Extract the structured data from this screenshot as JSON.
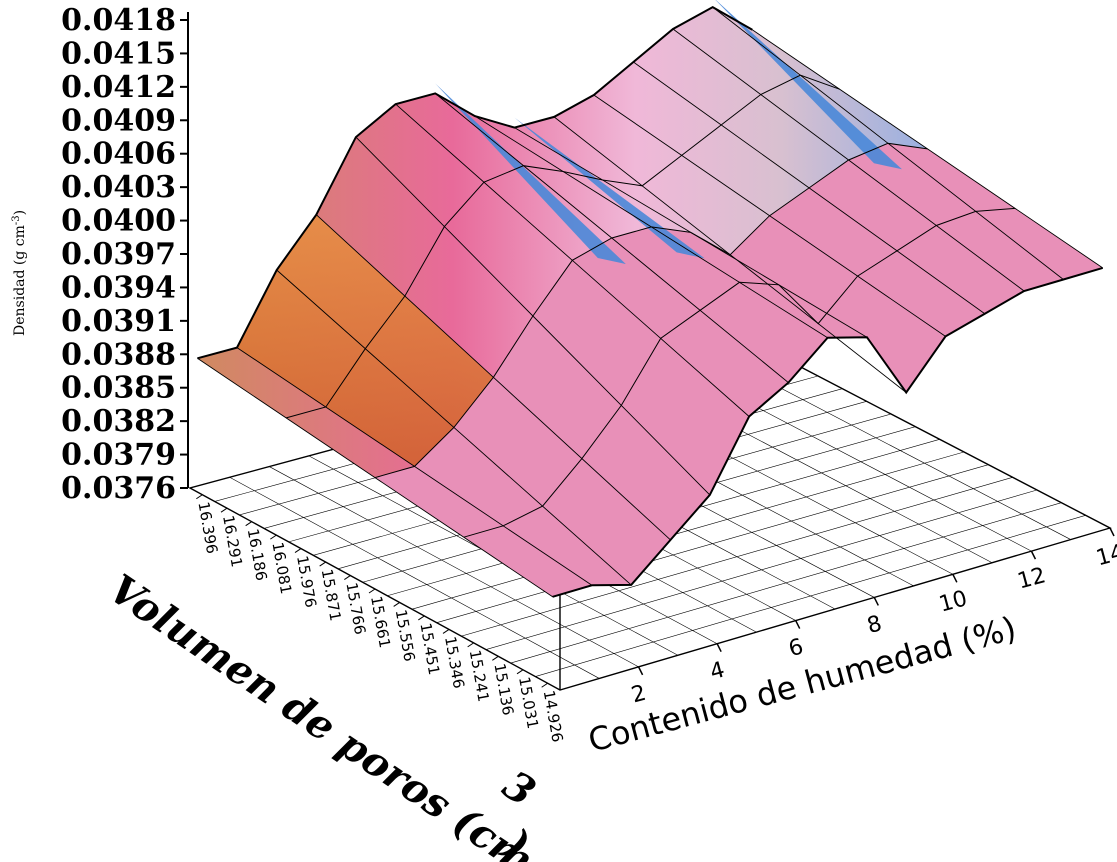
{
  "chart_data": {
    "type": "surface",
    "z_axis": {
      "label": "Densidad (g cm-3)",
      "label_base": "Densidad (g cm",
      "label_sup": "-3",
      "label_close": ")",
      "ticks": [
        "0.0418",
        "0.0415",
        "0.0412",
        "0.0409",
        "0.0406",
        "0.0403",
        "0.0400",
        "0.0397",
        "0.0394",
        "0.0391",
        "0.0388",
        "0.0385",
        "0.0382",
        "0.0379",
        "0.0376"
      ],
      "range": [
        0.0376,
        0.0418
      ]
    },
    "x_axis": {
      "label": "Contenido de humedad (%)",
      "ticks": [
        "2",
        "4",
        "6",
        "8",
        "10",
        "12",
        "14"
      ],
      "range": [
        0,
        14
      ]
    },
    "y_axis": {
      "label_main": "Volumen de poros (cm",
      "label_sup": "3",
      "label_close": ")",
      "ticks": [
        "16.396",
        "16.291",
        "16.186",
        "16.081",
        "15.976",
        "15.871",
        "15.766",
        "15.661",
        "15.556",
        "15.451",
        "15.346",
        "15.241",
        "15.136",
        "15.031",
        "14.926"
      ]
    },
    "surface_profile": {
      "x": [
        0,
        1,
        2,
        3,
        4,
        5,
        6,
        7,
        8,
        9,
        10,
        11,
        12,
        13,
        14
      ],
      "back_density": [
        0.0388,
        0.0388,
        0.0394,
        0.0398,
        0.0404,
        0.0406,
        0.0406,
        0.0403,
        0.0401,
        0.0401,
        0.0402,
        0.0404,
        0.0406,
        0.0407,
        0.0404
      ],
      "front_density": [
        0.0384,
        0.0384,
        0.0383,
        0.0386,
        0.0389,
        0.0395,
        0.0397,
        0.04,
        0.0399,
        0.0393,
        0.0397,
        0.0398,
        0.0399,
        0.0399,
        0.0399
      ]
    },
    "colors": {
      "surface_main": "#e890b8",
      "surface_warm": "#e08a3a",
      "surface_cool": "#4a88d8",
      "grid": "#000000"
    },
    "grid": true
  }
}
